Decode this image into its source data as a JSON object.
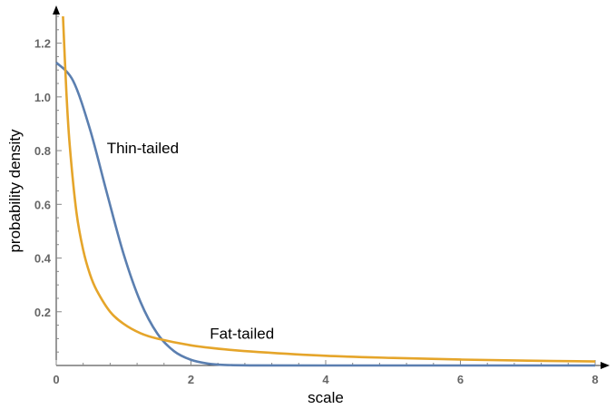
{
  "chart_data": {
    "type": "line",
    "xlabel": "scale",
    "ylabel": "probability density",
    "xlim": [
      0,
      8
    ],
    "ylim": [
      0,
      1.3
    ],
    "x_ticks": [
      0,
      2,
      4,
      6,
      8
    ],
    "y_ticks": [
      0.2,
      0.4,
      0.6,
      0.8,
      1.0,
      1.2
    ],
    "x_tick_labels": [
      "0",
      "2",
      "4",
      "6",
      "8"
    ],
    "y_tick_labels": [
      "0.2",
      "0.4",
      "0.6",
      "0.8",
      "1.0",
      "1.2"
    ],
    "grid": false,
    "series": [
      {
        "color": "#5B7FB0",
        "x": [
          0,
          0.25,
          0.5,
          0.75,
          1.0,
          1.25,
          1.5,
          1.75,
          2.0,
          2.25,
          2.5,
          3.0,
          4.0,
          6.0,
          8.0
        ],
        "y": [
          1.128,
          1.06,
          0.88,
          0.644,
          0.415,
          0.237,
          0.119,
          0.053,
          0.021,
          0.007,
          0.002,
          0.0001,
          0,
          0,
          0
        ]
      },
      {
        "color": "#E5A52A",
        "x": [
          0.1,
          0.15,
          0.2,
          0.3,
          0.4,
          0.5,
          0.6,
          0.8,
          1.0,
          1.25,
          1.5,
          2.0,
          2.5,
          3.0,
          4.0,
          5.0,
          6.0,
          7.0,
          8.0
        ],
        "y": [
          1.3,
          1.02,
          0.82,
          0.57,
          0.43,
          0.34,
          0.28,
          0.2,
          0.155,
          0.12,
          0.1,
          0.075,
          0.06,
          0.05,
          0.036,
          0.028,
          0.022,
          0.018,
          0.015
        ]
      }
    ],
    "annotations": [
      {
        "text": "Thin-tailed",
        "x": 0.75,
        "y": 0.79
      },
      {
        "text": "Fat-tailed",
        "x": 2.28,
        "y": 0.1
      }
    ]
  }
}
